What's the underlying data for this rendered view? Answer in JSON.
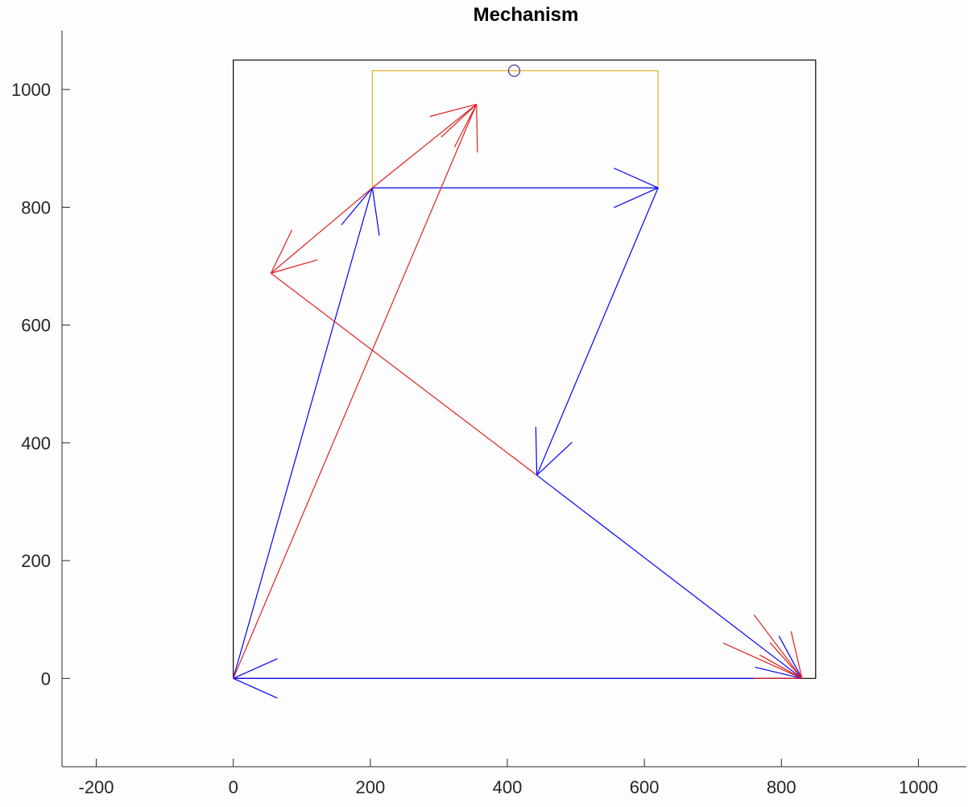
{
  "chart_data": {
    "type": "line",
    "title": "Mechanism",
    "xlabel": "",
    "ylabel": "",
    "xlim": [
      -250,
      1070
    ],
    "ylim": [
      -150,
      1100
    ],
    "x_ticks": [
      -200,
      0,
      200,
      400,
      600,
      800,
      1000
    ],
    "y_ticks": [
      0,
      200,
      400,
      600,
      800,
      1000
    ],
    "x_tick_labels": [
      "-200",
      "0",
      "200",
      "400",
      "600",
      "800",
      "1000"
    ],
    "y_tick_labels": [
      "0",
      "200",
      "400",
      "600",
      "800",
      "1000"
    ],
    "grid": false,
    "colors": {
      "blue": "#0000ff",
      "red": "#e0201f",
      "black": "#000000",
      "orange": "#e8b030",
      "circle": "#5a2a8a"
    },
    "series": [
      {
        "color": "black",
        "arrow": false,
        "x": [
          0,
          850,
          850,
          0,
          0
        ],
        "y": [
          0,
          0,
          1050,
          1050,
          0
        ]
      },
      {
        "color": "orange",
        "arrow": false,
        "x": [
          203,
          203,
          620,
          620
        ],
        "y": [
          833,
          1032,
          1032,
          833
        ]
      },
      {
        "color": "blue",
        "arrow": true,
        "x": [
          0,
          203
        ],
        "y": [
          0,
          833
        ]
      },
      {
        "color": "blue",
        "arrow": true,
        "x": [
          203,
          620
        ],
        "y": [
          833,
          833
        ]
      },
      {
        "color": "blue",
        "arrow": true,
        "x": [
          620,
          443
        ],
        "y": [
          833,
          345
        ]
      },
      {
        "color": "blue",
        "arrow": true,
        "x": [
          443,
          830
        ],
        "y": [
          345,
          0
        ]
      },
      {
        "color": "blue",
        "arrow": true,
        "x": [
          830,
          0
        ],
        "y": [
          0,
          0
        ]
      },
      {
        "color": "red",
        "arrow": true,
        "x": [
          0,
          355
        ],
        "y": [
          0,
          975
        ]
      },
      {
        "color": "red",
        "arrow": true,
        "x": [
          203,
          355
        ],
        "y": [
          833,
          975
        ]
      },
      {
        "color": "red",
        "arrow": true,
        "x": [
          203,
          55
        ],
        "y": [
          833,
          688
        ]
      },
      {
        "color": "red",
        "arrow": false,
        "x": [
          55,
          443
        ],
        "y": [
          688,
          345
        ]
      },
      {
        "color": "red",
        "arrow": true,
        "x": [
          760,
          830
        ],
        "y": [
          108,
          0
        ]
      },
      {
        "color": "red",
        "arrow": true,
        "x": [
          715,
          830
        ],
        "y": [
          60,
          0
        ]
      }
    ],
    "markers": [
      {
        "shape": "circle",
        "color": "circle",
        "x": 410,
        "y": 1032
      }
    ]
  }
}
